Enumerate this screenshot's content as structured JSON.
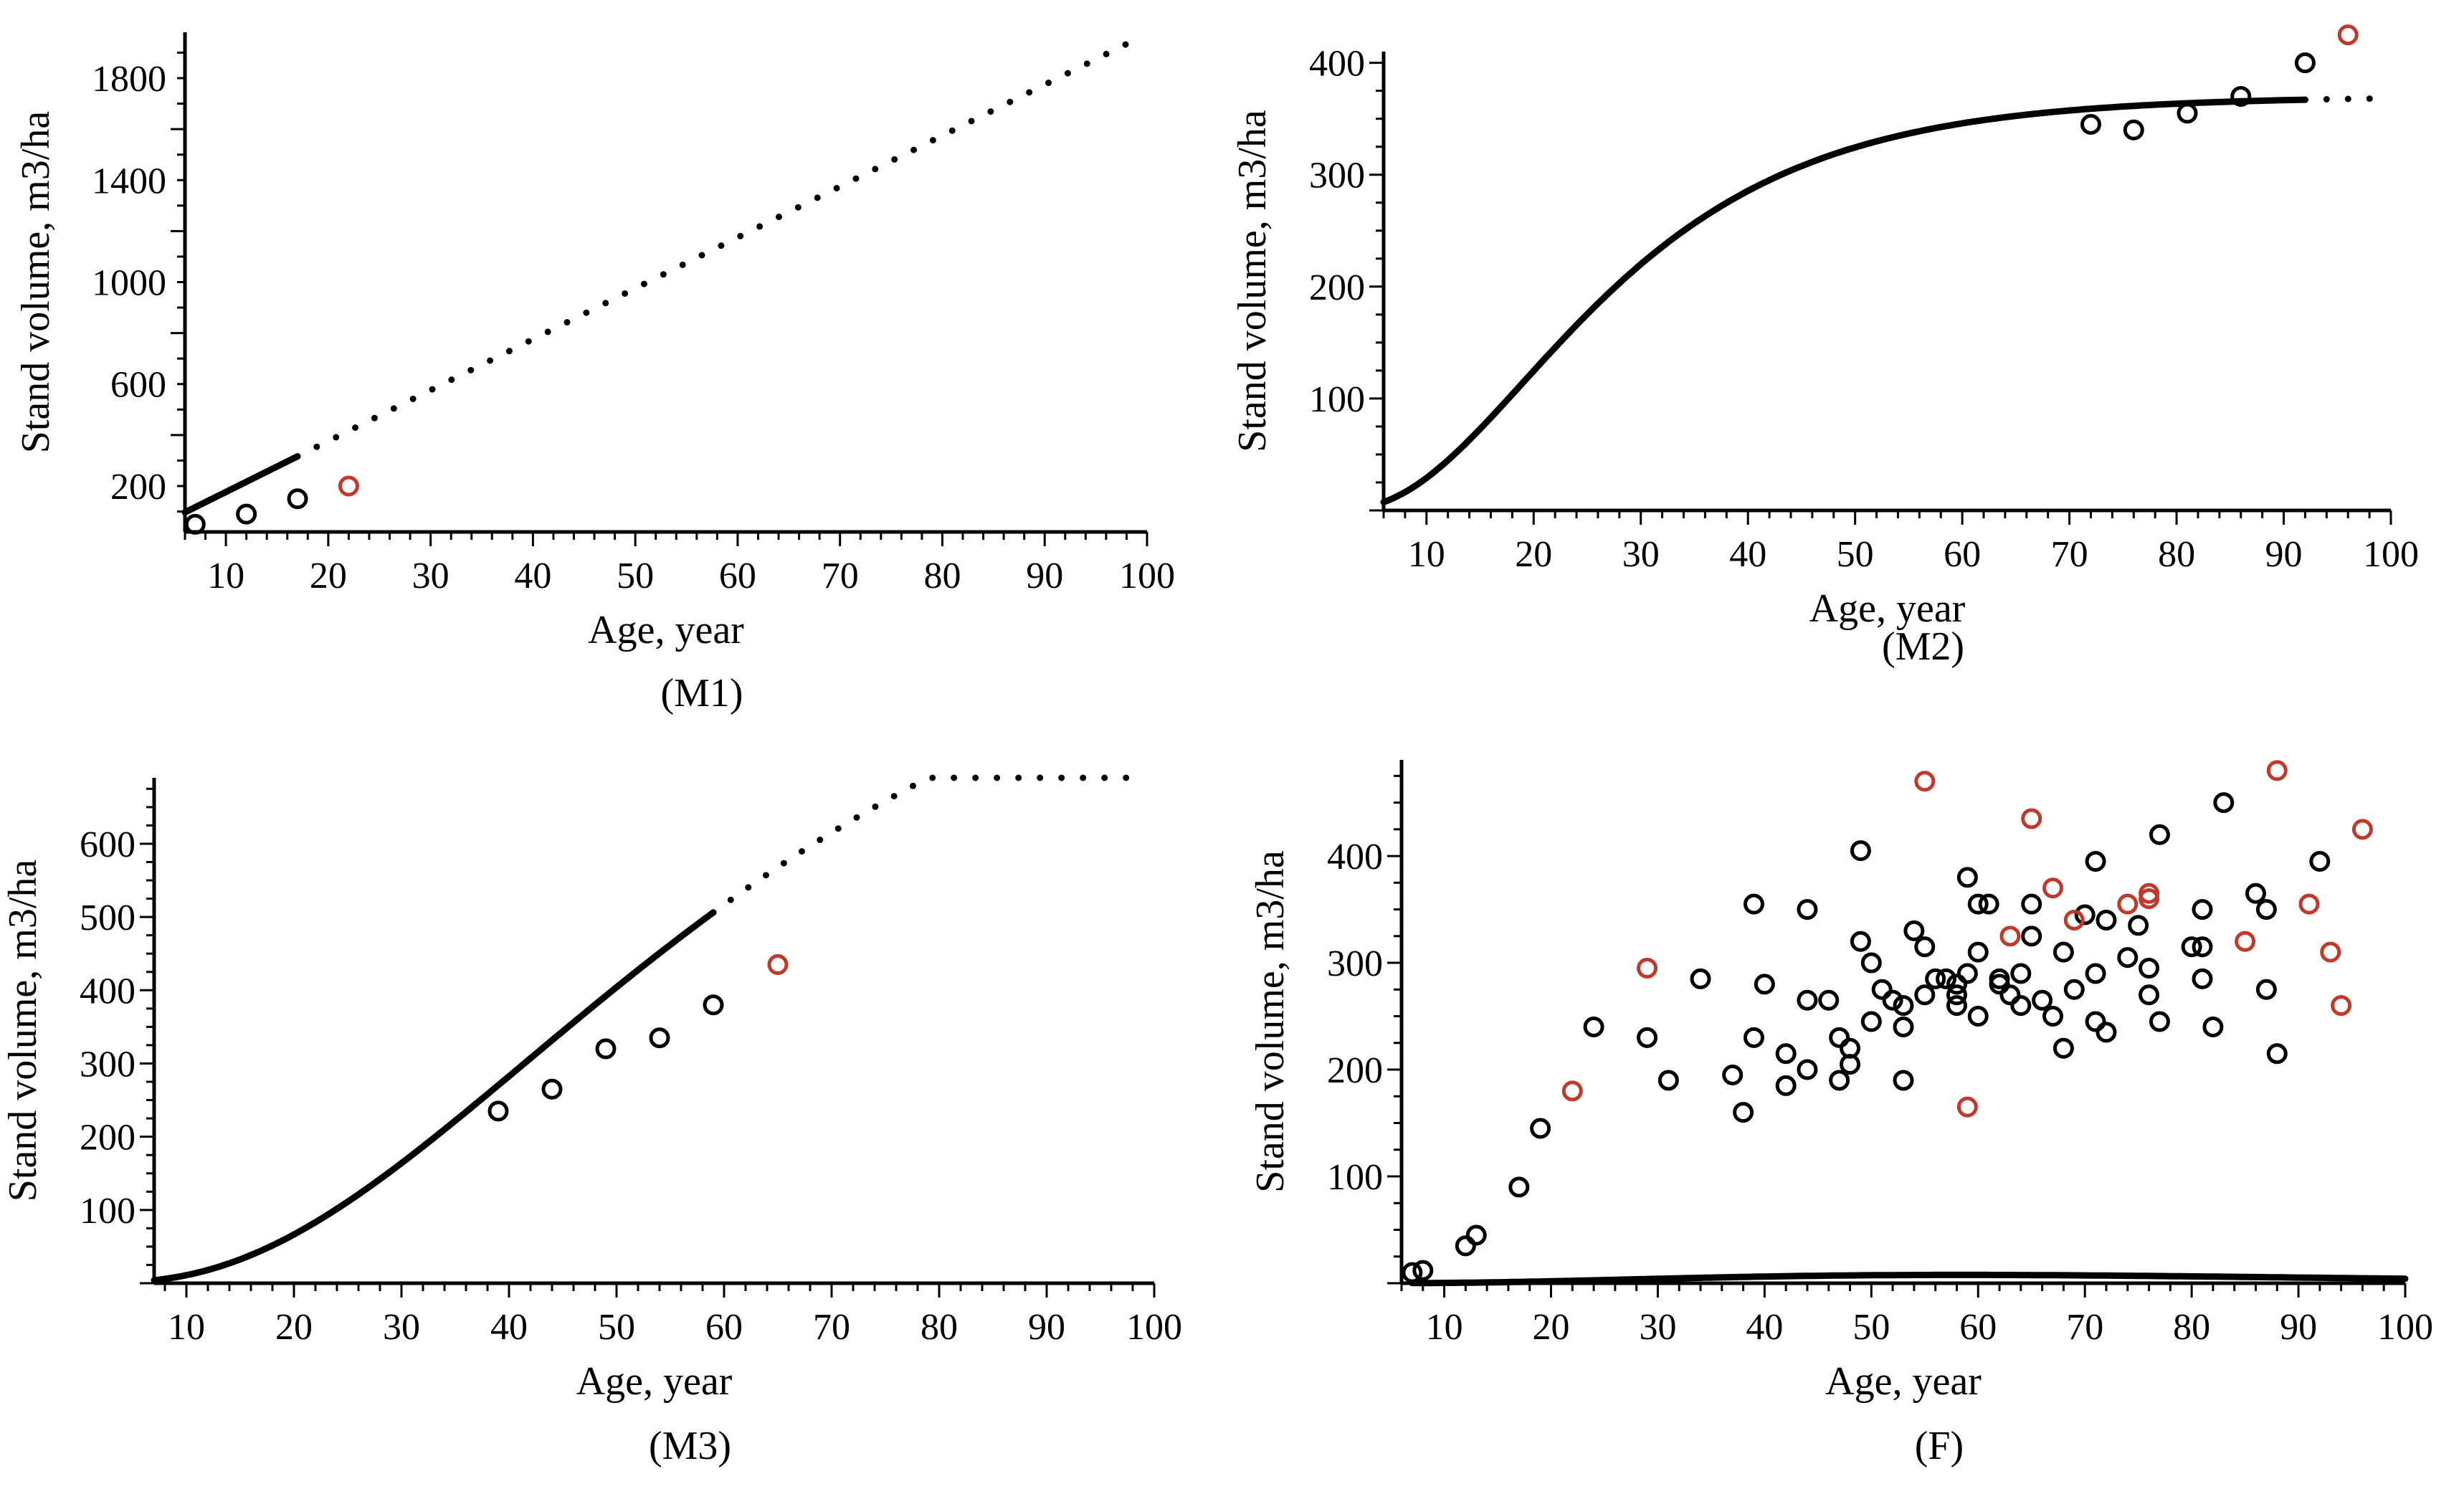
{
  "colors": {
    "axis": "#000000",
    "observed": "#000000",
    "validation": "#c0392b"
  },
  "chart_data": [
    {
      "id": "M1",
      "type": "line",
      "caption": "(M1)",
      "xlabel": "Age, year",
      "ylabel": "Stand volume, m3/ha",
      "xlim": [
        6,
        100
      ],
      "ylim": [
        20,
        1980
      ],
      "xticks": [
        10,
        20,
        30,
        40,
        50,
        60,
        70,
        80,
        90,
        100
      ],
      "yticks": [
        200,
        600,
        1000,
        1400,
        1800
      ],
      "fit_curve": {
        "kind": "linear",
        "params": {
          "a": -23,
          "b": 19.97
        },
        "x_start": 6,
        "x_end": 17,
        "style": "solid"
      },
      "projection": {
        "x_start": 17,
        "x_end": 99,
        "style": "dotted"
      },
      "points_observed": [
        {
          "x": 7,
          "y": 50
        },
        {
          "x": 12,
          "y": 90
        },
        {
          "x": 17,
          "y": 150
        }
      ],
      "points_validation": [
        {
          "x": 22,
          "y": 200
        }
      ]
    },
    {
      "id": "M2",
      "type": "line",
      "caption": "(M2)",
      "xlabel": "Age, year",
      "ylabel": "Stand volume, m3/ha",
      "xlim": [
        6,
        100
      ],
      "ylim": [
        0,
        410
      ],
      "xticks": [
        10,
        20,
        30,
        40,
        50,
        60,
        70,
        80,
        90,
        100
      ],
      "yticks": [
        100,
        200,
        300,
        400
      ],
      "fit_curve": {
        "kind": "richards",
        "params": {
          "A": 370,
          "k": 0.066,
          "p": 3.5
        },
        "x_start": 6,
        "x_end": 92,
        "style": "solid"
      },
      "projection": {
        "x_start": 92,
        "x_end": 100,
        "style": "dotted"
      },
      "points_observed": [
        {
          "x": 72,
          "y": 345
        },
        {
          "x": 76,
          "y": 340
        },
        {
          "x": 81,
          "y": 355
        },
        {
          "x": 86,
          "y": 370
        },
        {
          "x": 92,
          "y": 400
        }
      ],
      "points_validation": [
        {
          "x": 96,
          "y": 425
        }
      ]
    },
    {
      "id": "M3",
      "type": "line",
      "caption": "(M3)",
      "xlabel": "Age, year",
      "ylabel": "Stand volume, m3/ha",
      "xlim": [
        7,
        100
      ],
      "ylim": [
        0,
        690
      ],
      "xticks": [
        10,
        20,
        30,
        40,
        50,
        60,
        70,
        80,
        90,
        100
      ],
      "yticks": [
        100,
        200,
        300,
        400,
        500,
        600
      ],
      "fit_curve": {
        "kind": "richards",
        "params": {
          "A": 1000,
          "k": 0.028,
          "p": 3.2
        },
        "x_start": 7,
        "x_end": 59,
        "style": "solid"
      },
      "projection": {
        "x_start": 59,
        "x_end": 99,
        "style": "dotted"
      },
      "points_observed": [
        {
          "x": 39,
          "y": 235
        },
        {
          "x": 44,
          "y": 265
        },
        {
          "x": 49,
          "y": 320
        },
        {
          "x": 54,
          "y": 335
        },
        {
          "x": 59,
          "y": 380
        }
      ],
      "points_validation": [
        {
          "x": 65,
          "y": 435
        }
      ]
    },
    {
      "id": "F",
      "type": "scatter",
      "caption": "(F)",
      "xlabel": "Age, year",
      "ylabel": "Stand volume, m3/ha",
      "xlim": [
        6,
        100
      ],
      "ylim": [
        0,
        490
      ],
      "xticks": [
        10,
        20,
        30,
        40,
        50,
        60,
        70,
        80,
        90,
        100
      ],
      "yticks": [
        100,
        200,
        300,
        400
      ],
      "fit_curve": {
        "kind": "gamma",
        "params": {
          "a": 0.00017,
          "b": 3.5,
          "c": 0.06
        },
        "x_start": 7,
        "x_end": 100,
        "style": "solid"
      },
      "points_observed": [
        {
          "x": 7,
          "y": 10
        },
        {
          "x": 8,
          "y": 12
        },
        {
          "x": 12,
          "y": 35
        },
        {
          "x": 13,
          "y": 45
        },
        {
          "x": 17,
          "y": 90
        },
        {
          "x": 19,
          "y": 145
        },
        {
          "x": 24,
          "y": 240
        },
        {
          "x": 29,
          "y": 230
        },
        {
          "x": 31,
          "y": 190
        },
        {
          "x": 34,
          "y": 285
        },
        {
          "x": 37,
          "y": 195
        },
        {
          "x": 38,
          "y": 160
        },
        {
          "x": 39,
          "y": 355
        },
        {
          "x": 39,
          "y": 230
        },
        {
          "x": 40,
          "y": 280
        },
        {
          "x": 42,
          "y": 215
        },
        {
          "x": 42,
          "y": 185
        },
        {
          "x": 44,
          "y": 350
        },
        {
          "x": 44,
          "y": 265
        },
        {
          "x": 44,
          "y": 200
        },
        {
          "x": 46,
          "y": 265
        },
        {
          "x": 47,
          "y": 230
        },
        {
          "x": 47,
          "y": 190
        },
        {
          "x": 48,
          "y": 220
        },
        {
          "x": 48,
          "y": 205
        },
        {
          "x": 49,
          "y": 405
        },
        {
          "x": 49,
          "y": 320
        },
        {
          "x": 50,
          "y": 300
        },
        {
          "x": 50,
          "y": 245
        },
        {
          "x": 51,
          "y": 275
        },
        {
          "x": 52,
          "y": 265
        },
        {
          "x": 53,
          "y": 260
        },
        {
          "x": 53,
          "y": 240
        },
        {
          "x": 53,
          "y": 190
        },
        {
          "x": 54,
          "y": 330
        },
        {
          "x": 55,
          "y": 315
        },
        {
          "x": 55,
          "y": 270
        },
        {
          "x": 56,
          "y": 285
        },
        {
          "x": 57,
          "y": 285
        },
        {
          "x": 58,
          "y": 280
        },
        {
          "x": 58,
          "y": 270
        },
        {
          "x": 58,
          "y": 260
        },
        {
          "x": 59,
          "y": 380
        },
        {
          "x": 59,
          "y": 290
        },
        {
          "x": 60,
          "y": 355
        },
        {
          "x": 60,
          "y": 310
        },
        {
          "x": 60,
          "y": 250
        },
        {
          "x": 61,
          "y": 355
        },
        {
          "x": 62,
          "y": 285
        },
        {
          "x": 62,
          "y": 280
        },
        {
          "x": 63,
          "y": 270
        },
        {
          "x": 64,
          "y": 290
        },
        {
          "x": 64,
          "y": 260
        },
        {
          "x": 65,
          "y": 355
        },
        {
          "x": 65,
          "y": 325
        },
        {
          "x": 66,
          "y": 265
        },
        {
          "x": 67,
          "y": 250
        },
        {
          "x": 68,
          "y": 310
        },
        {
          "x": 68,
          "y": 220
        },
        {
          "x": 69,
          "y": 275
        },
        {
          "x": 70,
          "y": 345
        },
        {
          "x": 71,
          "y": 395
        },
        {
          "x": 71,
          "y": 290
        },
        {
          "x": 71,
          "y": 245
        },
        {
          "x": 72,
          "y": 235
        },
        {
          "x": 72,
          "y": 340
        },
        {
          "x": 74,
          "y": 305
        },
        {
          "x": 75,
          "y": 335
        },
        {
          "x": 76,
          "y": 295
        },
        {
          "x": 76,
          "y": 270
        },
        {
          "x": 77,
          "y": 420
        },
        {
          "x": 77,
          "y": 245
        },
        {
          "x": 80,
          "y": 315
        },
        {
          "x": 81,
          "y": 350
        },
        {
          "x": 81,
          "y": 285
        },
        {
          "x": 81,
          "y": 315
        },
        {
          "x": 82,
          "y": 240
        },
        {
          "x": 83,
          "y": 450
        },
        {
          "x": 86,
          "y": 365
        },
        {
          "x": 87,
          "y": 350
        },
        {
          "x": 87,
          "y": 275
        },
        {
          "x": 88,
          "y": 215
        },
        {
          "x": 92,
          "y": 395
        }
      ],
      "points_validation": [
        {
          "x": 22,
          "y": 180
        },
        {
          "x": 29,
          "y": 295
        },
        {
          "x": 55,
          "y": 470
        },
        {
          "x": 59,
          "y": 165
        },
        {
          "x": 63,
          "y": 325
        },
        {
          "x": 65,
          "y": 435
        },
        {
          "x": 67,
          "y": 370
        },
        {
          "x": 69,
          "y": 340
        },
        {
          "x": 74,
          "y": 355
        },
        {
          "x": 76,
          "y": 360
        },
        {
          "x": 76,
          "y": 365
        },
        {
          "x": 85,
          "y": 320
        },
        {
          "x": 88,
          "y": 480
        },
        {
          "x": 91,
          "y": 355
        },
        {
          "x": 93,
          "y": 310
        },
        {
          "x": 94,
          "y": 260
        },
        {
          "x": 96,
          "y": 425
        }
      ]
    }
  ]
}
